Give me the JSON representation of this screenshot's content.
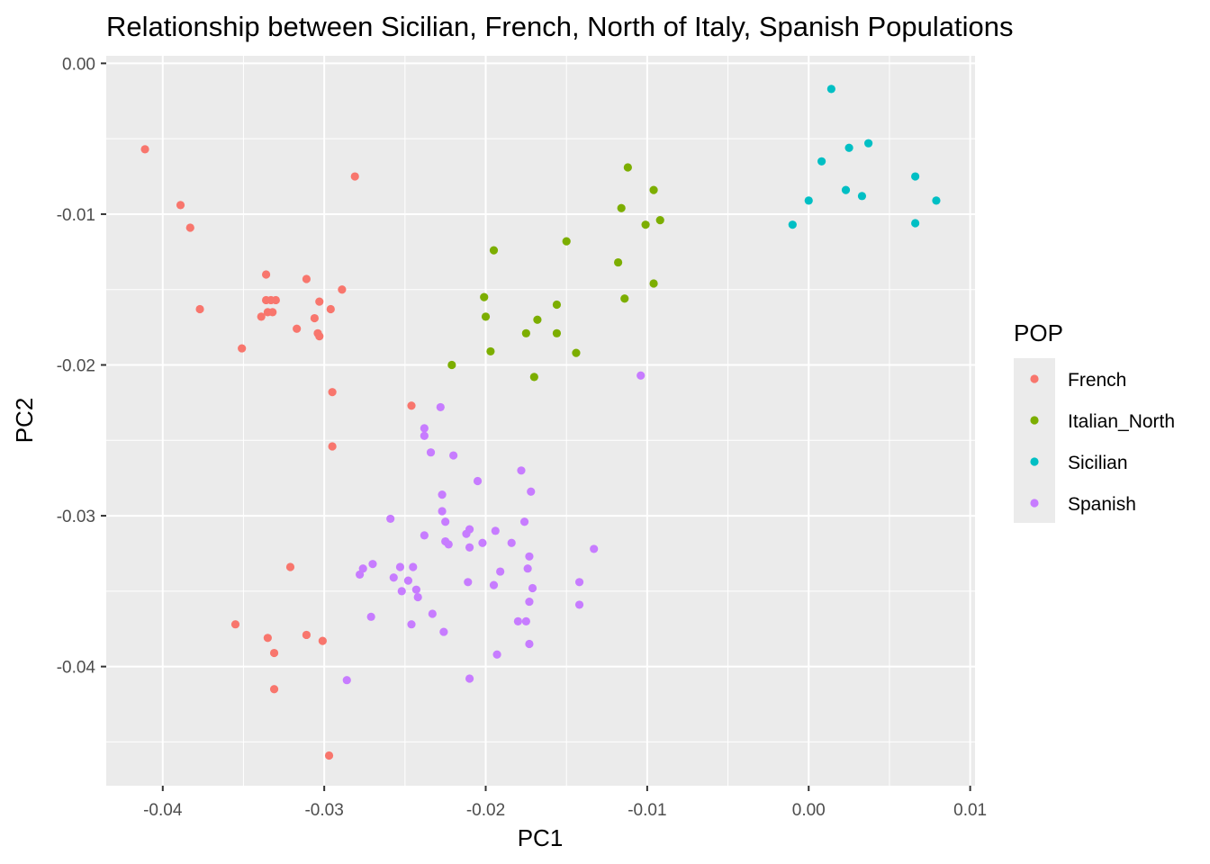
{
  "chart_data": {
    "type": "scatter",
    "title": "Relationship between Sicilian, French, North of Italy, Spanish Populations",
    "xlabel": "PC1",
    "ylabel": "PC2",
    "xlim": [
      -0.0435,
      0.0103
    ],
    "ylim": [
      -0.0479,
      0.0005
    ],
    "x_ticks": [
      {
        "value": -0.04,
        "label": "-0.04"
      },
      {
        "value": -0.03,
        "label": "-0.03"
      },
      {
        "value": -0.02,
        "label": "-0.02"
      },
      {
        "value": -0.01,
        "label": "-0.01"
      },
      {
        "value": 0.0,
        "label": "0.00"
      },
      {
        "value": 0.01,
        "label": "0.01"
      }
    ],
    "y_ticks": [
      {
        "value": 0.0,
        "label": "0.00"
      },
      {
        "value": -0.01,
        "label": "-0.01"
      },
      {
        "value": -0.02,
        "label": "-0.02"
      },
      {
        "value": -0.03,
        "label": "-0.03"
      },
      {
        "value": -0.04,
        "label": "-0.04"
      }
    ],
    "x_minor": [
      -0.035,
      -0.025,
      -0.015,
      -0.005,
      0.005
    ],
    "y_minor": [
      -0.005,
      -0.015,
      -0.025,
      -0.035,
      -0.045
    ],
    "grid": true,
    "panel_background": "#ebebeb",
    "legend": {
      "title": "POP",
      "position": "right"
    },
    "series": [
      {
        "name": "French",
        "color": "#f8766d",
        "points": [
          [
            -0.0411,
            -0.0057
          ],
          [
            -0.0389,
            -0.0094
          ],
          [
            -0.0383,
            -0.0109
          ],
          [
            -0.0377,
            -0.0163
          ],
          [
            -0.0281,
            -0.0075
          ],
          [
            -0.0336,
            -0.014
          ],
          [
            -0.0311,
            -0.0143
          ],
          [
            -0.0289,
            -0.015
          ],
          [
            -0.0336,
            -0.0157
          ],
          [
            -0.0333,
            -0.0157
          ],
          [
            -0.033,
            -0.0157
          ],
          [
            -0.0303,
            -0.0158
          ],
          [
            -0.0335,
            -0.0165
          ],
          [
            -0.0332,
            -0.0165
          ],
          [
            -0.0339,
            -0.0168
          ],
          [
            -0.0306,
            -0.0169
          ],
          [
            -0.0296,
            -0.0163
          ],
          [
            -0.0317,
            -0.0176
          ],
          [
            -0.0304,
            -0.0179
          ],
          [
            -0.0303,
            -0.0181
          ],
          [
            -0.0351,
            -0.0189
          ],
          [
            -0.0295,
            -0.0218
          ],
          [
            -0.0246,
            -0.0227
          ],
          [
            -0.0295,
            -0.0254
          ],
          [
            -0.0321,
            -0.0334
          ],
          [
            -0.0355,
            -0.0372
          ],
          [
            -0.0311,
            -0.0379
          ],
          [
            -0.0335,
            -0.0381
          ],
          [
            -0.0301,
            -0.0383
          ],
          [
            -0.0331,
            -0.0391
          ],
          [
            -0.0331,
            -0.0415
          ],
          [
            -0.0297,
            -0.0459
          ]
        ]
      },
      {
        "name": "Italian_North",
        "color": "#7cae00",
        "points": [
          [
            -0.0112,
            -0.0069
          ],
          [
            -0.0096,
            -0.0084
          ],
          [
            -0.0116,
            -0.0096
          ],
          [
            -0.0092,
            -0.0104
          ],
          [
            -0.0101,
            -0.0107
          ],
          [
            -0.015,
            -0.0118
          ],
          [
            -0.0195,
            -0.0124
          ],
          [
            -0.0118,
            -0.0132
          ],
          [
            -0.0096,
            -0.0146
          ],
          [
            -0.0114,
            -0.0156
          ],
          [
            -0.0201,
            -0.0155
          ],
          [
            -0.0156,
            -0.016
          ],
          [
            -0.02,
            -0.0168
          ],
          [
            -0.0168,
            -0.017
          ],
          [
            -0.0175,
            -0.0179
          ],
          [
            -0.0156,
            -0.0179
          ],
          [
            -0.0197,
            -0.0191
          ],
          [
            -0.0144,
            -0.0192
          ],
          [
            -0.0221,
            -0.02
          ],
          [
            -0.017,
            -0.0208
          ]
        ]
      },
      {
        "name": "Sicilian",
        "color": "#00bfc4",
        "points": [
          [
            0.0014,
            -0.0017
          ],
          [
            0.0037,
            -0.0053
          ],
          [
            0.0025,
            -0.0056
          ],
          [
            0.0008,
            -0.0065
          ],
          [
            0.0066,
            -0.0075
          ],
          [
            0.0023,
            -0.0084
          ],
          [
            0.0033,
            -0.0088
          ],
          [
            0.0,
            -0.0091
          ],
          [
            0.0079,
            -0.0091
          ],
          [
            -0.001,
            -0.0107
          ],
          [
            0.0066,
            -0.0106
          ]
        ]
      },
      {
        "name": "Spanish",
        "color": "#c77cff",
        "points": [
          [
            -0.0104,
            -0.0207
          ],
          [
            -0.0228,
            -0.0228
          ],
          [
            -0.0238,
            -0.0242
          ],
          [
            -0.0238,
            -0.0247
          ],
          [
            -0.0234,
            -0.0258
          ],
          [
            -0.022,
            -0.026
          ],
          [
            -0.0178,
            -0.027
          ],
          [
            -0.0205,
            -0.0277
          ],
          [
            -0.0172,
            -0.0284
          ],
          [
            -0.0227,
            -0.0286
          ],
          [
            -0.0227,
            -0.0297
          ],
          [
            -0.0259,
            -0.0302
          ],
          [
            -0.0225,
            -0.0304
          ],
          [
            -0.0176,
            -0.0304
          ],
          [
            -0.021,
            -0.0309
          ],
          [
            -0.0194,
            -0.031
          ],
          [
            -0.0212,
            -0.0312
          ],
          [
            -0.0238,
            -0.0313
          ],
          [
            -0.0225,
            -0.0317
          ],
          [
            -0.0223,
            -0.0319
          ],
          [
            -0.0202,
            -0.0318
          ],
          [
            -0.021,
            -0.0321
          ],
          [
            -0.0184,
            -0.0318
          ],
          [
            -0.0133,
            -0.0322
          ],
          [
            -0.0173,
            -0.0327
          ],
          [
            -0.027,
            -0.0332
          ],
          [
            -0.0276,
            -0.0335
          ],
          [
            -0.0253,
            -0.0334
          ],
          [
            -0.0245,
            -0.0334
          ],
          [
            -0.0174,
            -0.0335
          ],
          [
            -0.0191,
            -0.0337
          ],
          [
            -0.0278,
            -0.0339
          ],
          [
            -0.0257,
            -0.0341
          ],
          [
            -0.0248,
            -0.0343
          ],
          [
            -0.0211,
            -0.0344
          ],
          [
            -0.0142,
            -0.0344
          ],
          [
            -0.0243,
            -0.0349
          ],
          [
            -0.0195,
            -0.0346
          ],
          [
            -0.0171,
            -0.0348
          ],
          [
            -0.0252,
            -0.035
          ],
          [
            -0.0242,
            -0.0354
          ],
          [
            -0.0173,
            -0.0357
          ],
          [
            -0.0142,
            -0.0359
          ],
          [
            -0.0233,
            -0.0365
          ],
          [
            -0.0271,
            -0.0367
          ],
          [
            -0.018,
            -0.037
          ],
          [
            -0.0175,
            -0.037
          ],
          [
            -0.0246,
            -0.0372
          ],
          [
            -0.0226,
            -0.0377
          ],
          [
            -0.0173,
            -0.0385
          ],
          [
            -0.0193,
            -0.0392
          ],
          [
            -0.0286,
            -0.0409
          ],
          [
            -0.021,
            -0.0408
          ]
        ]
      }
    ]
  }
}
